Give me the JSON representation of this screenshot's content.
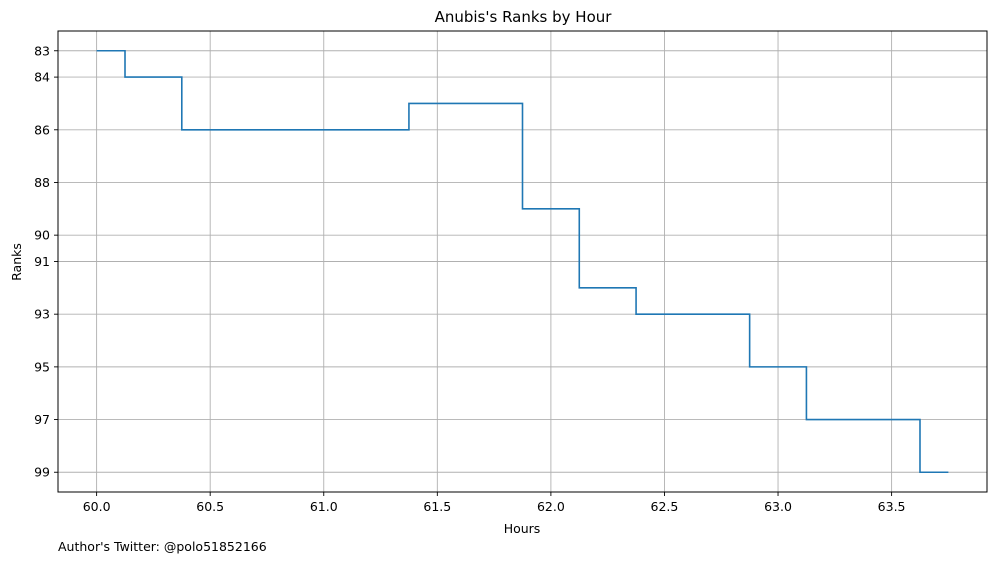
{
  "footnote": "Author's Twitter: @polo51852166",
  "chart_data": {
    "type": "line",
    "step": "post",
    "title": "Anubis's Ranks by Hour",
    "xlabel": "Hours",
    "ylabel": "Ranks",
    "xlim": [
      59.83,
      63.92
    ],
    "ylim": [
      99.75,
      82.25
    ],
    "y_inverted": true,
    "grid": true,
    "xticks": [
      60.0,
      60.5,
      61.0,
      61.5,
      62.0,
      62.5,
      63.0,
      63.5
    ],
    "xtick_labels": [
      "60.0",
      "60.5",
      "61.0",
      "61.5",
      "62.0",
      "62.5",
      "63.0",
      "63.5"
    ],
    "yticks": [
      83,
      84,
      86,
      88,
      90,
      91,
      93,
      95,
      97,
      99
    ],
    "ytick_labels": [
      "83",
      "84",
      "86",
      "88",
      "90",
      "91",
      "93",
      "95",
      "97",
      "99"
    ],
    "series": [
      {
        "color": "#1f77b4",
        "x": [
          60.0,
          60.125,
          60.375,
          61.375,
          61.875,
          62.125,
          62.375,
          62.875,
          63.125,
          63.625,
          63.75
        ],
        "y": [
          83,
          84,
          86,
          85,
          89,
          92,
          93,
          95,
          97,
          99,
          99
        ]
      }
    ]
  }
}
